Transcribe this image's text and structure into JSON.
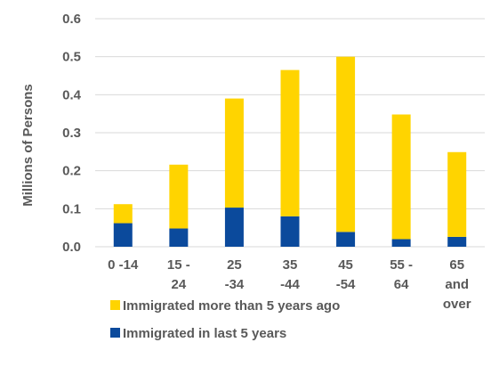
{
  "chart_data": {
    "type": "bar",
    "stacked": true,
    "title": "",
    "xlabel": "",
    "ylabel": "Millions of Persons",
    "ylim": [
      0,
      0.6
    ],
    "yticks": [
      "0.0",
      "0.1",
      "0.2",
      "0.3",
      "0.4",
      "0.5",
      "0.6"
    ],
    "grid": true,
    "legend_position": "bottom",
    "categories": [
      [
        "0 -14"
      ],
      [
        "15 -",
        "24"
      ],
      [
        "25",
        "-34"
      ],
      [
        "35",
        "-44"
      ],
      [
        "45",
        "-54"
      ],
      [
        "55 -",
        "64"
      ],
      [
        "65",
        "and",
        "over"
      ]
    ],
    "series": [
      {
        "name": "Immigrated in last 5 years",
        "color": "#0B4A9C",
        "values": [
          0.062,
          0.048,
          0.103,
          0.08,
          0.039,
          0.02,
          0.026
        ]
      },
      {
        "name": "Immigrated more than 5 years ago",
        "color": "#FFD400",
        "values": [
          0.05,
          0.168,
          0.287,
          0.385,
          0.461,
          0.328,
          0.223
        ]
      }
    ],
    "legend_order": [
      1,
      0
    ]
  }
}
